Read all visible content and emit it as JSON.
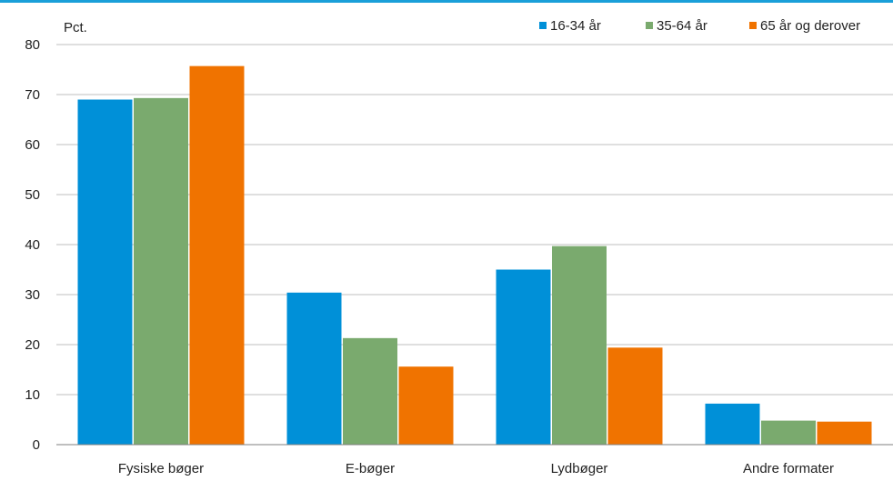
{
  "chart_data": {
    "type": "bar",
    "ylabel": "Pct.",
    "xlabel": "",
    "ylim": [
      0,
      80
    ],
    "yticks": [
      0,
      10,
      20,
      30,
      40,
      50,
      60,
      70,
      80
    ],
    "grid": true,
    "legend_position": "top-right",
    "categories": [
      "Fysiske bøger",
      "E-bøger",
      "Lydbøger",
      "Andre formater"
    ],
    "series": [
      {
        "name": "16-34 år",
        "color": "#0090d8",
        "values": [
          69,
          30.4,
          35,
          8.2
        ]
      },
      {
        "name": "35-64 år",
        "color": "#7aaa6e",
        "values": [
          69.3,
          21.3,
          39.7,
          4.8
        ]
      },
      {
        "name": "65 år og derover",
        "color": "#f07300",
        "values": [
          75.7,
          15.6,
          19.4,
          4.6
        ]
      }
    ]
  },
  "colors": {
    "top_rule": "#1a9fd9",
    "grid": "#bfbfbf",
    "axis": "#7f7f7f"
  }
}
